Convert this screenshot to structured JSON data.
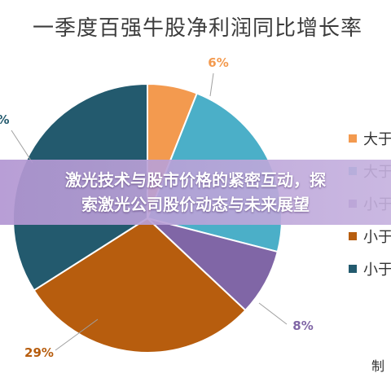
{
  "chart_data": {
    "type": "pie",
    "title": "一季度百强牛股净利润同比增长率",
    "slices": [
      {
        "label": "6%",
        "value": 6,
        "color": "#F39A4F"
      },
      {
        "label": "",
        "value": 23,
        "color": "#4BAFC8"
      },
      {
        "label": "8%",
        "value": 8,
        "color": "#8066A6"
      },
      {
        "label": "29%",
        "value": 29,
        "color": "#B75D0E"
      },
      {
        "label": "%",
        "value": 34,
        "color": "#235A6E"
      }
    ],
    "legend": {
      "position": "right",
      "entries": [
        "大于",
        "大于",
        "小于",
        "小于",
        "小于"
      ]
    }
  },
  "banner": {
    "line1": "激光技术与股市价格的紧密互动，探",
    "line2": "索激光公司股价动态与未来展望"
  },
  "footer": "制"
}
